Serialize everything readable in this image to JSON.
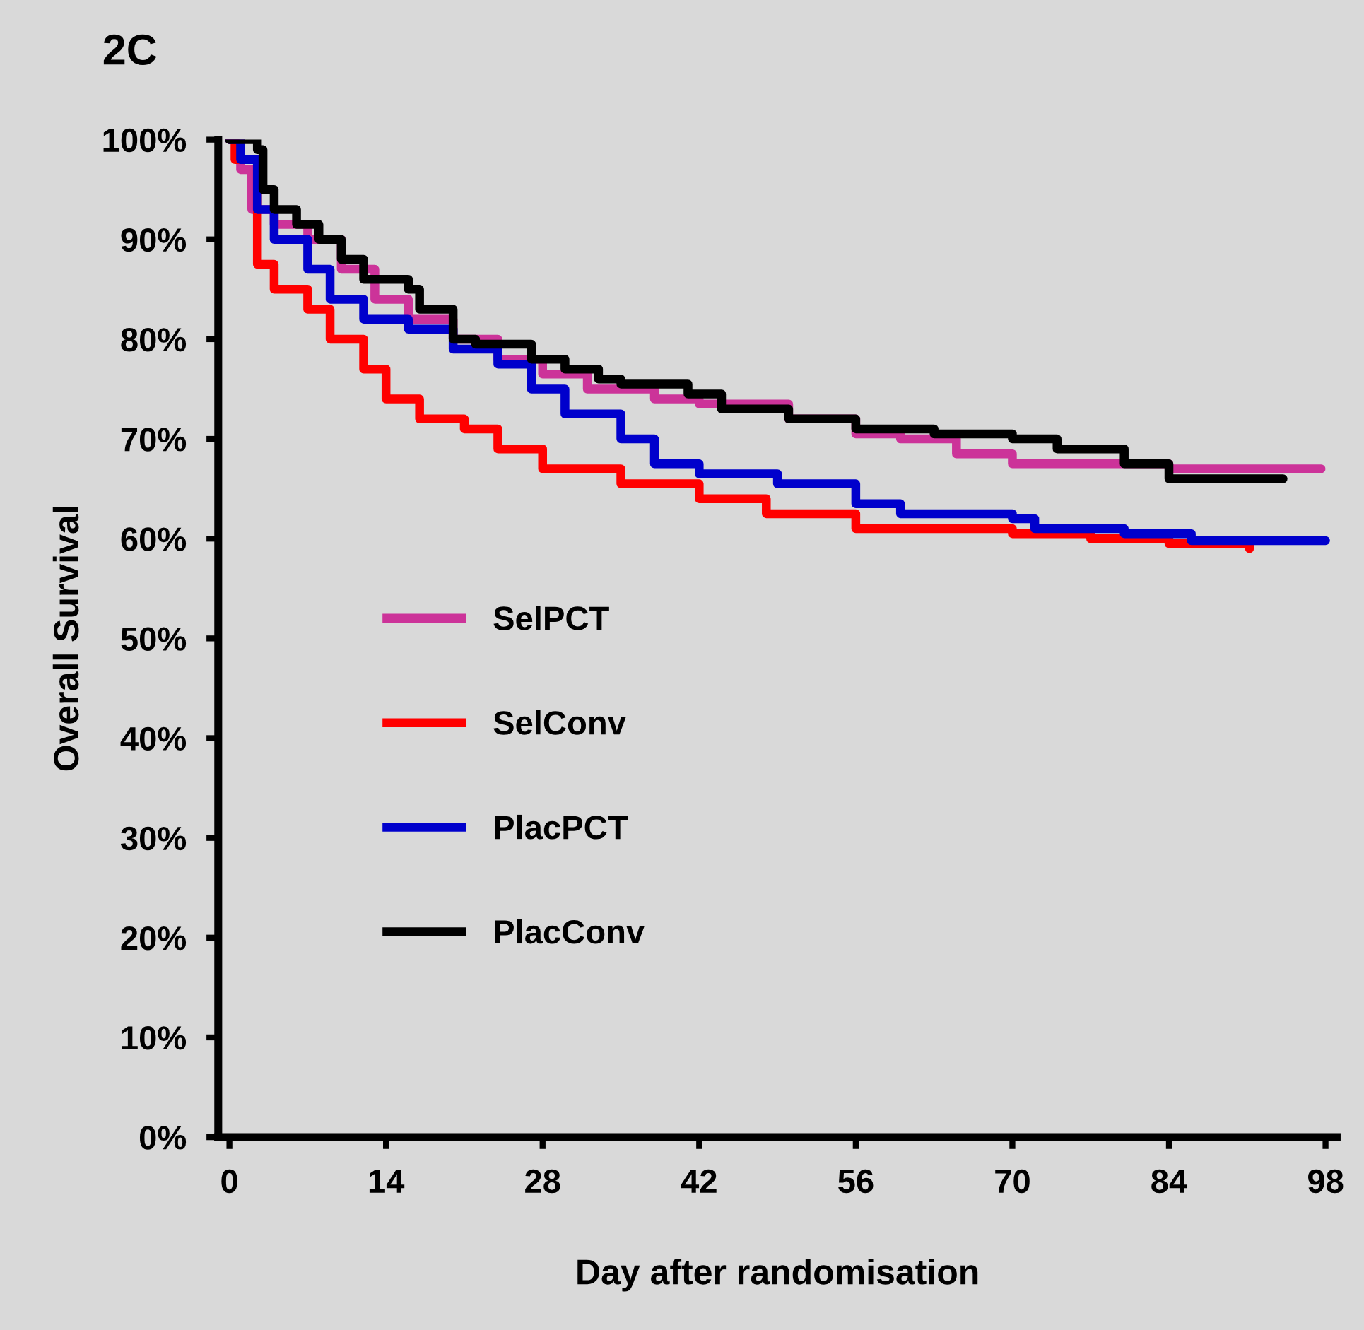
{
  "chart_data": {
    "type": "step",
    "title": "2C",
    "xlabel": "Day after randomisation",
    "ylabel": "Overall Survival",
    "xlim": [
      -1,
      99
    ],
    "xticks": [
      0,
      14,
      28,
      42,
      56,
      70,
      84,
      98
    ],
    "ylim": [
      0,
      100
    ],
    "yticks": [
      {
        "value": 0,
        "label": "0%"
      },
      {
        "value": 10,
        "label": "10%"
      },
      {
        "value": 20,
        "label": "20%"
      },
      {
        "value": 30,
        "label": "30%"
      },
      {
        "value": 40,
        "label": "40%"
      },
      {
        "value": 50,
        "label": "50%"
      },
      {
        "value": 60,
        "label": "60%"
      },
      {
        "value": 70,
        "label": "70%"
      },
      {
        "value": 80,
        "label": "80%"
      },
      {
        "value": 90,
        "label": "90%"
      },
      {
        "value": 100,
        "label": "100%"
      }
    ],
    "grid": false,
    "legend": "left",
    "marker": "none",
    "line_style": "solid",
    "series": [
      {
        "name": "SelPCT",
        "color": "#cc3399",
        "x": [
          0,
          1,
          2,
          4,
          7,
          10,
          13,
          16,
          20,
          24,
          28,
          32,
          38,
          42,
          50,
          56,
          60,
          65,
          70,
          84,
          97.6
        ],
        "values": [
          100,
          97,
          93,
          91.5,
          90,
          87,
          84,
          82,
          80,
          78,
          76.5,
          75,
          74,
          73.5,
          72,
          70.5,
          70,
          68.5,
          67.5,
          67,
          67
        ]
      },
      {
        "name": "SelConv",
        "color": "#ff0000",
        "x": [
          0,
          0.5,
          2.5,
          4,
          7,
          9,
          12,
          14,
          17,
          21,
          24,
          28,
          35,
          42,
          48,
          56,
          70,
          77,
          84,
          91.2
        ],
        "values": [
          100,
          98,
          87.5,
          85,
          83,
          80,
          77,
          74,
          72,
          71,
          69,
          67,
          65.5,
          64,
          62.5,
          61,
          60.5,
          60,
          59.5,
          59
        ]
      },
      {
        "name": "PlacPCT",
        "color": "#0000cc",
        "x": [
          0,
          1,
          2.5,
          4,
          7,
          9,
          12,
          16,
          20,
          24,
          27,
          30,
          35,
          38,
          42,
          49,
          56,
          60,
          70,
          72,
          80,
          86,
          98
        ],
        "values": [
          100,
          98,
          93,
          90,
          87,
          84,
          82,
          81,
          79,
          77.5,
          75,
          72.5,
          70,
          67.5,
          66.5,
          65.5,
          63.5,
          62.5,
          62,
          61,
          60.5,
          59.8,
          59.8
        ]
      },
      {
        "name": "PlacConv",
        "color": "#000000",
        "x": [
          0,
          2.5,
          3,
          4,
          6,
          8,
          10,
          12,
          16,
          17,
          20,
          22,
          27,
          30,
          33,
          35,
          41,
          44,
          50,
          56,
          63,
          70,
          74,
          80,
          84,
          94.2
        ],
        "values": [
          100,
          99,
          95,
          93,
          91.5,
          90,
          88,
          86,
          85,
          83,
          80,
          79.5,
          78,
          77,
          76,
          75.5,
          74.5,
          73,
          72,
          71,
          70.5,
          70,
          69,
          67.5,
          66,
          66
        ]
      }
    ]
  }
}
